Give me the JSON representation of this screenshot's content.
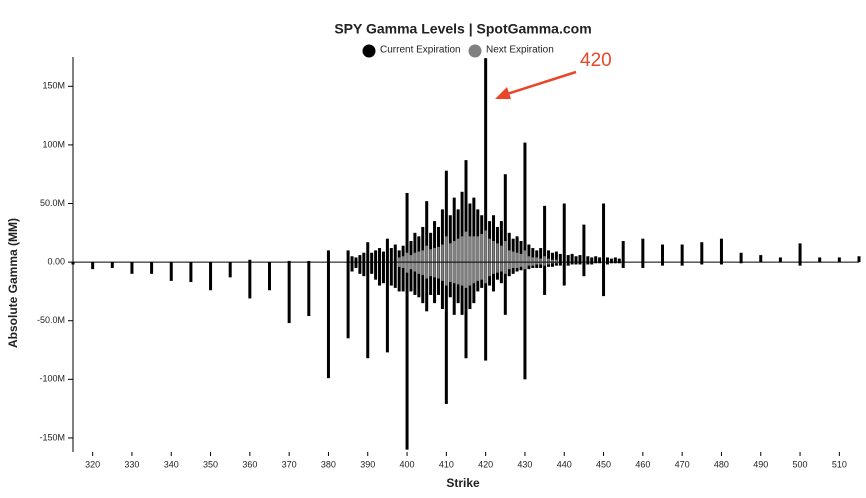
{
  "chart_data": {
    "type": "bar",
    "title": "SPY Gamma Levels | SpotGamma.com",
    "x_label": "Strike",
    "y_label": "Absolute Gamma (MM)",
    "annotation": "420",
    "xlim": [
      315,
      515
    ],
    "xticks": [
      320,
      330,
      340,
      350,
      360,
      370,
      380,
      390,
      400,
      410,
      420,
      430,
      440,
      450,
      460,
      470,
      480,
      490,
      500,
      510
    ],
    "ylim": [
      -162,
      175
    ],
    "yticks": [
      {
        "value": -150,
        "label": "-150M"
      },
      {
        "value": -100,
        "label": "-100M"
      },
      {
        "value": -50,
        "label": "-50.0M"
      },
      {
        "value": 0,
        "label": "0.00"
      },
      {
        "value": 50,
        "label": "50.0M"
      },
      {
        "value": 100,
        "label": "100M"
      },
      {
        "value": 150,
        "label": "150M"
      }
    ],
    "series": [
      {
        "name": "Current Expiration",
        "color": "#000000",
        "x": [
          315,
          320,
          325,
          330,
          335,
          340,
          345,
          350,
          355,
          360,
          365,
          370,
          375,
          380,
          385,
          386,
          387,
          388,
          389,
          390,
          391,
          392,
          393,
          394,
          395,
          396,
          397,
          398,
          399,
          400,
          401,
          402,
          403,
          404,
          405,
          406,
          407,
          408,
          409,
          410,
          411,
          412,
          413,
          414,
          415,
          416,
          417,
          418,
          419,
          420,
          421,
          422,
          423,
          424,
          425,
          426,
          427,
          428,
          429,
          430,
          431,
          432,
          433,
          434,
          435,
          436,
          437,
          438,
          439,
          440,
          441,
          442,
          443,
          444,
          445,
          446,
          447,
          448,
          449,
          450,
          451,
          452,
          453,
          454,
          455,
          460,
          465,
          470,
          475,
          480,
          485,
          490,
          495,
          500,
          505,
          510,
          515
        ],
        "values": [
          0,
          0,
          0,
          0,
          0,
          0,
          0,
          0,
          0,
          2,
          0,
          1,
          1,
          10,
          10,
          5,
          4,
          6,
          8,
          17,
          8,
          10,
          12,
          9,
          20,
          12,
          15,
          10,
          14,
          59,
          18,
          25,
          22,
          30,
          52,
          25,
          35,
          30,
          45,
          78,
          40,
          55,
          45,
          60,
          87,
          50,
          55,
          45,
          40,
          174,
          35,
          40,
          30,
          35,
          75,
          25,
          20,
          22,
          18,
          102,
          15,
          12,
          10,
          12,
          48,
          10,
          8,
          9,
          7,
          50,
          6,
          7,
          5,
          6,
          32,
          5,
          4,
          5,
          4,
          50,
          4,
          3,
          4,
          3,
          18,
          20,
          15,
          15,
          17,
          20,
          8,
          6,
          4,
          16,
          4,
          4,
          5
        ],
        "negative_values": [
          -2,
          -6,
          -5,
          -10,
          -10,
          -16,
          -17,
          -24,
          -13,
          -31,
          -24,
          -52,
          -46,
          -99,
          -65,
          -8,
          -5,
          -10,
          -12,
          -82,
          -10,
          -15,
          -20,
          -18,
          -77,
          -20,
          -22,
          -25,
          -25,
          -160,
          -25,
          -28,
          -30,
          -35,
          -42,
          -28,
          -35,
          -28,
          -40,
          -121,
          -30,
          -45,
          -35,
          -45,
          -82,
          -40,
          -35,
          -25,
          -22,
          -84,
          -20,
          -25,
          -15,
          -18,
          -45,
          -12,
          -10,
          -8,
          -7,
          -100,
          -6,
          -5,
          -5,
          -5,
          -28,
          -4,
          -4,
          -3,
          -3,
          -20,
          -3,
          -2,
          -2,
          -2,
          -12,
          -2,
          -2,
          -1,
          -1,
          -29,
          -2,
          -1,
          -1,
          -1,
          -5,
          -5,
          -3,
          -3,
          -2,
          -2,
          -1,
          0,
          0,
          -3,
          0,
          0,
          0
        ]
      },
      {
        "name": "Next Expiration",
        "color": "#808080",
        "x": [
          398,
          399,
          400,
          401,
          402,
          403,
          404,
          405,
          406,
          407,
          408,
          409,
          410,
          411,
          412,
          413,
          414,
          415,
          416,
          417,
          418,
          419,
          420,
          421,
          422,
          423,
          424,
          425,
          426,
          427,
          428,
          429,
          430,
          431,
          432,
          433,
          434,
          435,
          436,
          437,
          438
        ],
        "values": [
          4,
          5,
          8,
          6,
          8,
          9,
          10,
          14,
          11,
          12,
          13,
          15,
          22,
          16,
          18,
          20,
          22,
          26,
          22,
          22,
          22,
          24,
          27,
          20,
          18,
          16,
          14,
          18,
          10,
          9,
          8,
          7,
          10,
          5,
          4,
          4,
          3,
          5,
          3,
          2,
          2
        ],
        "negative_values": [
          -4,
          -5,
          -9,
          -6,
          -8,
          -10,
          -11,
          -14,
          -12,
          -13,
          -14,
          -16,
          -20,
          -17,
          -18,
          -19,
          -20,
          -22,
          -20,
          -18,
          -16,
          -15,
          -18,
          -12,
          -10,
          -9,
          -8,
          -10,
          -6,
          -5,
          -5,
          -4,
          -6,
          -3,
          -3,
          -2,
          -2,
          -3,
          -2,
          -1,
          -1
        ]
      }
    ]
  }
}
